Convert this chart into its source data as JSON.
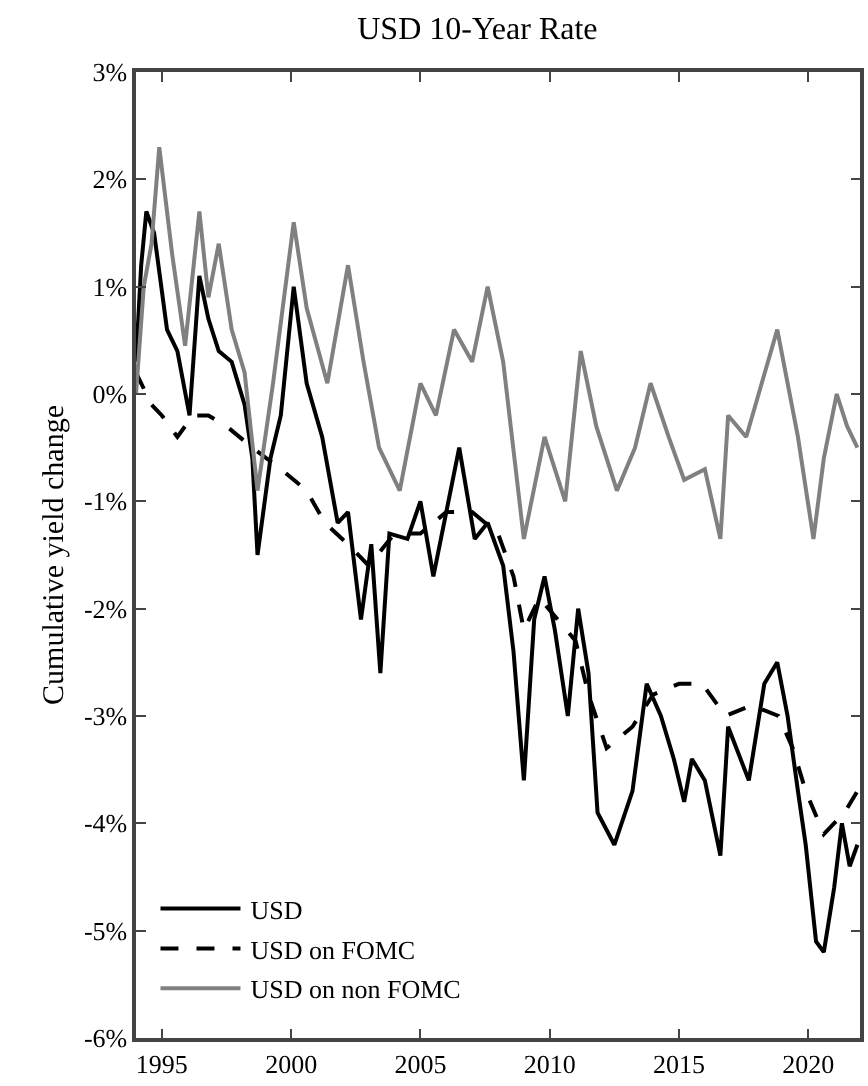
{
  "chart_data": {
    "type": "line",
    "title": "USD 10-Year Rate",
    "ylabel": "Cumulative yield change",
    "xlim": [
      1994,
      2022
    ],
    "xticks": [
      1995,
      2000,
      2005,
      2010,
      2015,
      2020
    ],
    "ylim": [
      -6,
      3
    ],
    "yticks": [
      {
        "value": -6,
        "label": "-6%"
      },
      {
        "value": -5,
        "label": "-5%"
      },
      {
        "value": -4,
        "label": "-4%"
      },
      {
        "value": -3,
        "label": "-3%"
      },
      {
        "value": -2,
        "label": "-2%"
      },
      {
        "value": -1,
        "label": "-1%"
      },
      {
        "value": 0,
        "label": "0%"
      },
      {
        "value": 1,
        "label": "1%"
      },
      {
        "value": 2,
        "label": "2%"
      },
      {
        "value": 3,
        "label": "3%"
      }
    ],
    "legend": "bottom left",
    "marker": "none",
    "series": [
      {
        "name": "USD",
        "color": "#000000",
        "line_style": "solid",
        "x": [
          1994,
          1994.2,
          1994.4,
          1994.7,
          1995.2,
          1995.6,
          1996.07,
          1996.45,
          1996.8,
          1997.2,
          1997.7,
          1998.2,
          1998.5,
          1998.7,
          1999.2,
          1999.6,
          2000.1,
          2000.6,
          2001.2,
          2001.8,
          2002.2,
          2002.7,
          2003.1,
          2003.45,
          2003.8,
          2004.5,
          2005.0,
          2005.5,
          2006.0,
          2006.5,
          2007.1,
          2007.6,
          2008.2,
          2008.6,
          2009.0,
          2009.4,
          2009.8,
          2010.2,
          2010.7,
          2011.1,
          2011.5,
          2011.85,
          2012.5,
          2013.2,
          2013.75,
          2014.3,
          2014.8,
          2015.2,
          2015.5,
          2016.0,
          2016.6,
          2016.9,
          2017.7,
          2018.3,
          2018.8,
          2019.2,
          2019.6,
          2019.9,
          2020.3,
          2020.6,
          2021.0,
          2021.3,
          2021.6,
          2021.9
        ],
        "values": [
          0.3,
          1.2,
          1.7,
          1.5,
          0.6,
          0.4,
          -0.2,
          1.1,
          0.7,
          0.4,
          0.3,
          -0.1,
          -0.6,
          -1.5,
          -0.6,
          -0.2,
          1.0,
          0.1,
          -0.4,
          -1.2,
          -1.1,
          -2.1,
          -1.4,
          -2.6,
          -1.3,
          -1.35,
          -1.0,
          -1.7,
          -1.1,
          -0.5,
          -1.35,
          -1.2,
          -1.6,
          -2.4,
          -3.6,
          -2.1,
          -1.7,
          -2.2,
          -3.0,
          -2.0,
          -2.6,
          -3.9,
          -4.2,
          -3.7,
          -2.7,
          -3.0,
          -3.4,
          -3.8,
          -3.4,
          -3.6,
          -4.3,
          -3.1,
          -3.6,
          -2.7,
          -2.5,
          -3.0,
          -3.7,
          -4.2,
          -5.1,
          -5.2,
          -4.6,
          -4.0,
          -4.4,
          -4.2
        ]
      },
      {
        "name": "USD on FOMC",
        "color": "#000000",
        "line_style": "dashed",
        "x": [
          1994,
          1994.6,
          1995.0,
          1995.6,
          1996.2,
          1996.8,
          1997.5,
          1998.5,
          1999.6,
          2000.6,
          2001.3,
          2002.2,
          2003.0,
          2004.0,
          2005.0,
          2006.0,
          2007.0,
          2008.0,
          2008.6,
          2009.0,
          2009.6,
          2010.3,
          2011.0,
          2011.5,
          2012.2,
          2013.2,
          2014.0,
          2015.0,
          2015.9,
          2016.8,
          2017.8,
          2018.85,
          2019.4,
          2019.9,
          2020.6,
          2021.4,
          2021.9
        ],
        "values": [
          0.2,
          -0.1,
          -0.2,
          -0.4,
          -0.2,
          -0.2,
          -0.3,
          -0.5,
          -0.7,
          -0.9,
          -1.2,
          -1.4,
          -1.6,
          -1.3,
          -1.3,
          -1.1,
          -1.1,
          -1.3,
          -1.7,
          -2.2,
          -1.9,
          -2.1,
          -2.3,
          -2.8,
          -3.3,
          -3.1,
          -2.8,
          -2.7,
          -2.7,
          -3.0,
          -2.9,
          -3.0,
          -3.3,
          -3.7,
          -4.1,
          -3.9,
          -3.7
        ]
      },
      {
        "name": "USD on non FOMC",
        "color": "#808080",
        "line_style": "solid",
        "x": [
          1994,
          1994.3,
          1994.6,
          1994.9,
          1995.4,
          1995.9,
          1996.45,
          1996.8,
          1997.2,
          1997.7,
          1998.2,
          1998.7,
          1999.3,
          2000.1,
          2000.6,
          2001.4,
          2002.2,
          2002.8,
          2003.4,
          2004.2,
          2005.0,
          2005.6,
          2006.3,
          2007.0,
          2007.6,
          2008.2,
          2009.0,
          2009.8,
          2010.6,
          2011.2,
          2011.8,
          2012.6,
          2013.3,
          2013.9,
          2014.6,
          2015.2,
          2016.0,
          2016.6,
          2016.9,
          2017.6,
          2018.2,
          2018.8,
          2019.6,
          2020.2,
          2020.6,
          2021.1,
          2021.5,
          2021.9
        ],
        "values": [
          0,
          1.0,
          1.4,
          2.3,
          1.3,
          0.45,
          1.7,
          0.9,
          1.4,
          0.6,
          0.2,
          -0.9,
          0.1,
          1.6,
          0.8,
          0.1,
          1.2,
          0.3,
          -0.5,
          -0.9,
          0.1,
          -0.2,
          0.6,
          0.3,
          1.0,
          0.3,
          -1.35,
          -0.4,
          -1.0,
          0.4,
          -0.3,
          -0.9,
          -0.5,
          0.1,
          -0.4,
          -0.8,
          -0.7,
          -1.35,
          -0.2,
          -0.4,
          0.1,
          0.6,
          -0.4,
          -1.35,
          -0.6,
          0.0,
          -0.3,
          -0.5
        ]
      }
    ]
  }
}
